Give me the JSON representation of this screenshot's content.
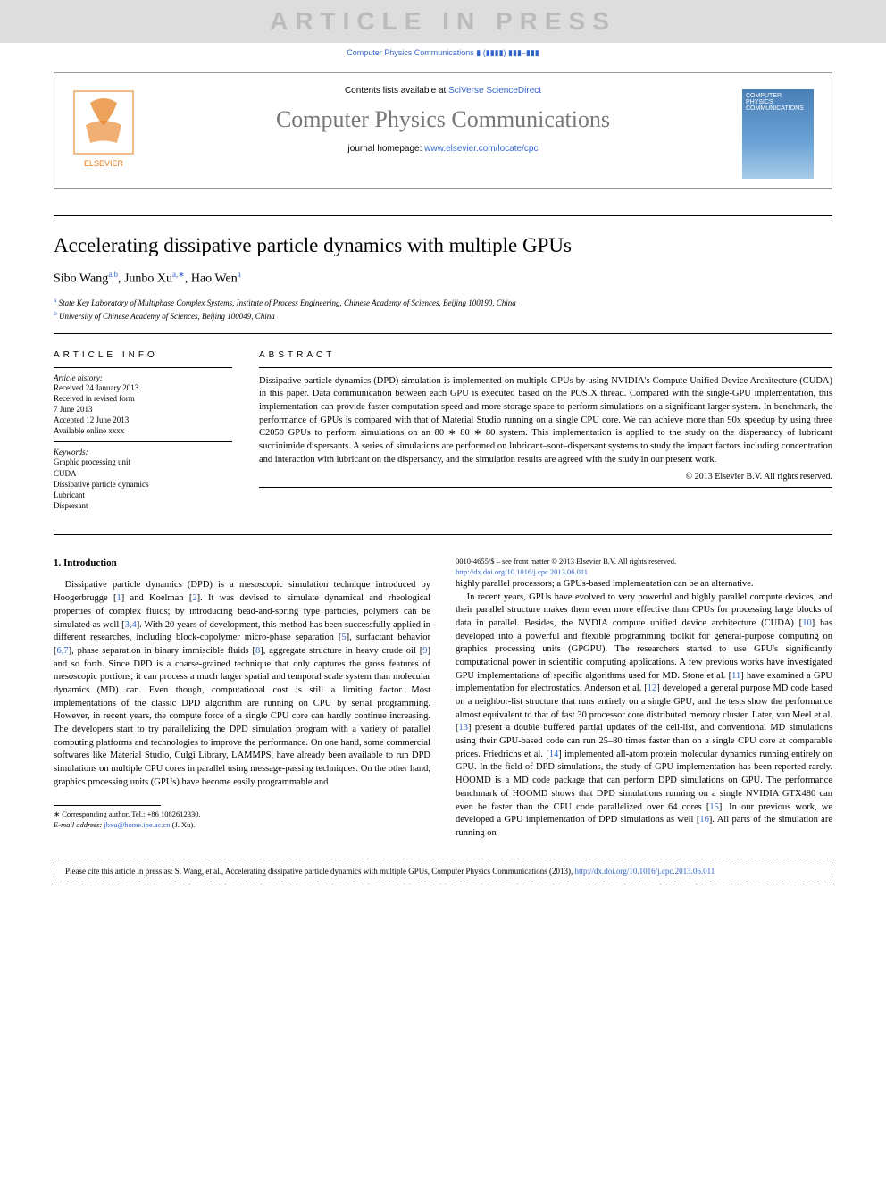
{
  "banner": "ARTICLE IN PRESS",
  "refline": "Computer Physics Communications ▮ (▮▮▮▮) ▮▮▮–▮▮▮",
  "header": {
    "contents_prefix": "Contents lists available at ",
    "contents_link": "SciVerse ScienceDirect",
    "journal": "Computer Physics Communications",
    "homepage_prefix": "journal homepage: ",
    "homepage_link": "www.elsevier.com/locate/cpc",
    "elsevier_label": "ELSEVIER",
    "cover_text": "COMPUTER PHYSICS COMMUNICATIONS"
  },
  "title": "Accelerating dissipative particle dynamics with multiple GPUs",
  "authors_html": "Sibo Wang",
  "author_list": [
    {
      "name": "Sibo Wang",
      "marks": "a,b"
    },
    {
      "name": "Junbo Xu",
      "marks": "a,∗"
    },
    {
      "name": "Hao Wen",
      "marks": "a"
    }
  ],
  "affiliations": [
    {
      "mark": "a",
      "text": "State Key Laboratory of Multiphase Complex Systems, Institute of Process Engineering, Chinese Academy of Sciences, Beijing 100190, China"
    },
    {
      "mark": "b",
      "text": "University of Chinese Academy of Sciences, Beijing 100049, China"
    }
  ],
  "info": {
    "head": "ARTICLE INFO",
    "history_label": "Article history:",
    "history": "Received 24 January 2013\nReceived in revised form\n7 June 2013\nAccepted 12 June 2013\nAvailable online xxxx",
    "keywords_label": "Keywords:",
    "keywords": "Graphic processing unit\nCUDA\nDissipative particle dynamics\nLubricant\nDispersant"
  },
  "abstract": {
    "head": "ABSTRACT",
    "text": "Dissipative particle dynamics (DPD) simulation is implemented on multiple GPUs by using NVIDIA's Compute Unified Device Architecture (CUDA) in this paper. Data communication between each GPU is executed based on the POSIX thread. Compared with the single-GPU implementation, this implementation can provide faster computation speed and more storage space to perform simulations on a significant larger system. In benchmark, the performance of GPUs is compared with that of Material Studio running on a single CPU core. We can achieve more than 90x speedup by using three C2050 GPUs to perform simulations on an 80 ∗ 80 ∗ 80 system. This implementation is applied to the study on the dispersancy of lubricant succinimide dispersants. A series of simulations are performed on lubricant–soot–dispersant systems to study the impact factors including concentration and interaction with lubricant on the dispersancy, and the simulation results are agreed with the study in our present work.",
    "copyright": "© 2013 Elsevier B.V. All rights reserved."
  },
  "sections": {
    "intro_head": "1. Introduction",
    "col1_p1": "Dissipative particle dynamics (DPD) is a mesoscopic simulation technique introduced by Hoogerbrugge [1] and Koelman [2]. It was devised to simulate dynamical and rheological properties of complex fluids; by introducing bead-and-spring type particles, polymers can be simulated as well [3,4]. With 20 years of development, this method has been successfully applied in different researches, including block-copolymer micro-phase separation [5], surfactant behavior [6,7], phase separation in binary immiscible fluids [8], aggregate structure in heavy crude oil [9] and so forth. Since DPD is a coarse-grained technique that only captures the gross features of mesoscopic portions, it can process a much larger spatial and temporal scale system than molecular dynamics (MD) can. Even though, computational cost is still a limiting factor. Most implementations of the classic DPD algorithm are running on CPU by serial programming. However, in recent years, the compute force of a single CPU core can hardly continue increasing. The developers start to try parallelizing the DPD simulation program with a variety of parallel computing platforms and technologies to improve the performance. On one hand, some commercial softwares like Material Studio, Culgi Library, LAMMPS, have already been available to run DPD simulations on multiple CPU cores in parallel using message-passing techniques. On the other hand, graphics processing units (GPUs) have become easily programmable and",
    "col2_p1": "highly parallel processors; a GPUs-based implementation can be an alternative.",
    "col2_p2": "In recent years, GPUs have evolved to very powerful and highly parallel compute devices, and their parallel structure makes them even more effective than CPUs for processing large blocks of data in parallel. Besides, the NVDIA compute unified device architecture (CUDA) [10] has developed into a powerful and flexible programming toolkit for general-purpose computing on graphics processing units (GPGPU). The researchers started to use GPU's significantly computational power in scientific computing applications. A few previous works have investigated GPU implementations of specific algorithms used for MD. Stone et al. [11] have examined a GPU implementation for electrostatics. Anderson et al. [12] developed a general purpose MD code based on a neighbor-list structure that runs entirely on a single GPU, and the tests show the performance almost equivalent to that of fast 30 processor core distributed memory cluster. Later, van Meel et al. [13] present a double buffered partial updates of the cell-list, and conventional MD simulations using their GPU-based code can run 25–80 times faster than on a single CPU core at comparable prices. Friedrichs et al. [14] implemented all-atom protein molecular dynamics running entirely on GPU. In the field of DPD simulations, the study of GPU implementation has been reported rarely. HOOMD is a MD code package that can perform DPD simulations on GPU. The performance benchmark of HOOMD shows that DPD simulations running on a single NVIDIA GTX480 can even be faster than the CPU code parallelized over 64 cores [15]. In our previous work, we developed a GPU implementation of DPD simulations as well [16]. All parts of the simulation are running on"
  },
  "footnote": {
    "corr": "∗ Corresponding author. Tel.: +86 1082612330.",
    "email_label": "E-mail address: ",
    "email": "jbxu@home.ipe.ac.cn",
    "email_suffix": " (J. Xu)."
  },
  "doi": {
    "line1": "0010-4655/$ – see front matter © 2013 Elsevier B.V. All rights reserved.",
    "link": "http://dx.doi.org/10.1016/j.cpc.2013.06.011"
  },
  "citebox": {
    "text": "Please cite this article in press as: S. Wang, et al., Accelerating dissipative particle dynamics with multiple GPUs, Computer Physics Communications (2013), ",
    "link": "http://dx.doi.org/10.1016/j.cpc.2013.06.011"
  },
  "colors": {
    "link": "#3366cc",
    "banner_bg": "#dddddd",
    "banner_fg": "#bbbbbb",
    "rule": "#000000"
  }
}
